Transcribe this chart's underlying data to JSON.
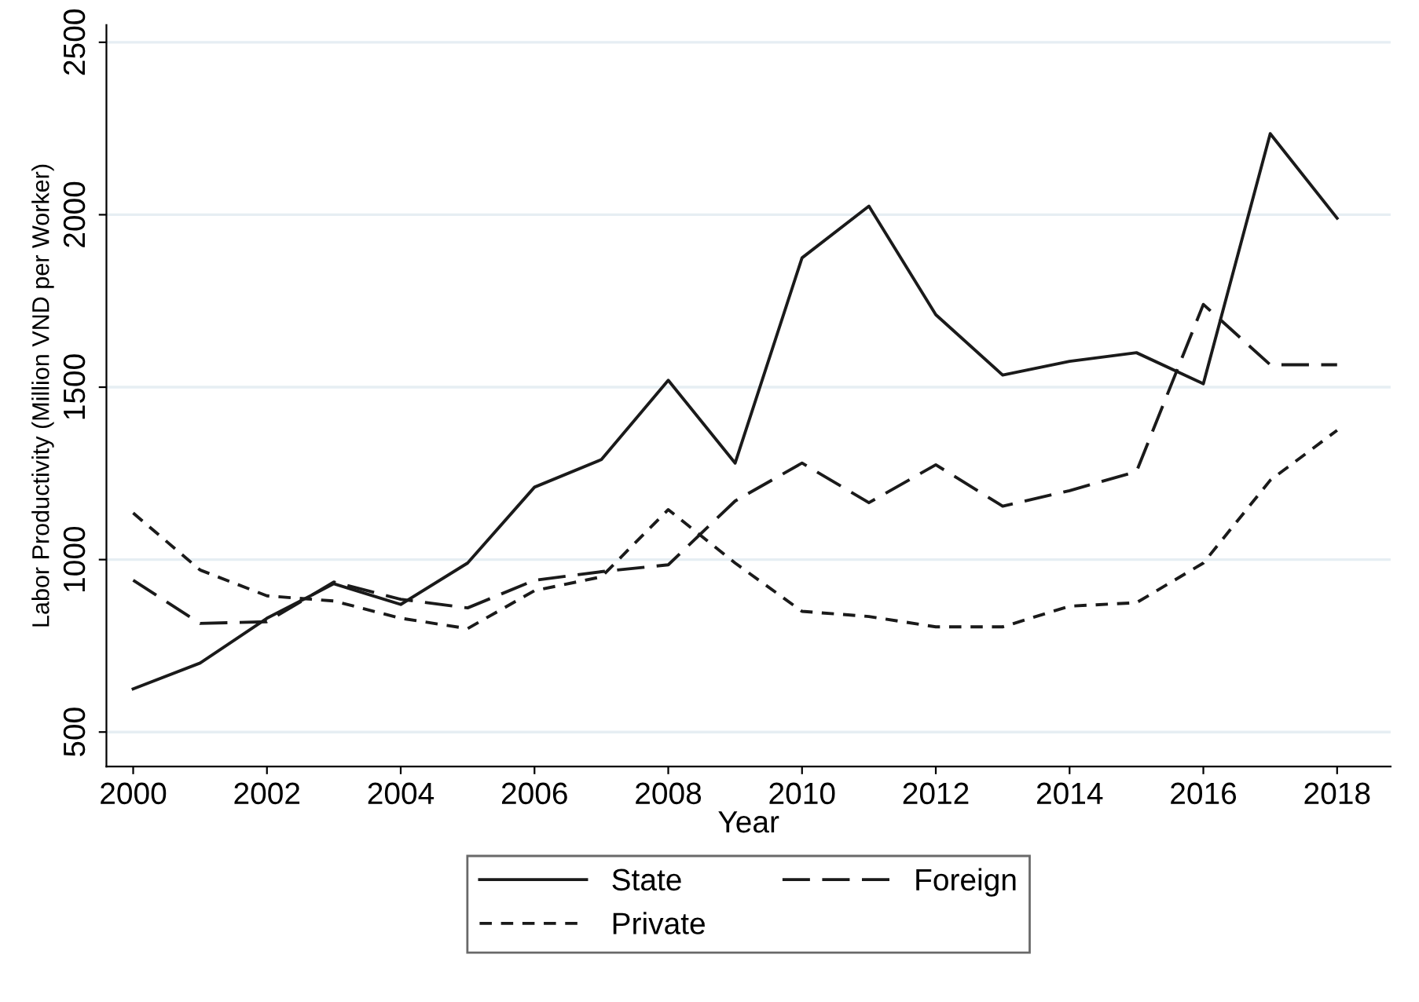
{
  "chart_data": {
    "type": "line",
    "xlabel": "Year",
    "ylabel": "Labor Productivity (Million VND per Worker)",
    "x": [
      2000,
      2001,
      2002,
      2003,
      2004,
      2005,
      2006,
      2007,
      2008,
      2009,
      2010,
      2011,
      2012,
      2013,
      2014,
      2015,
      2016,
      2017,
      2018
    ],
    "series": [
      {
        "name": "State",
        "color": "#1a1a1a",
        "line_style": "solid",
        "values": [
          625,
          700,
          830,
          930,
          870,
          990,
          1210,
          1290,
          1520,
          1280,
          1875,
          2025,
          1710,
          1535,
          1575,
          1600,
          1510,
          2235,
          1990
        ]
      },
      {
        "name": "Private",
        "color": "#1a1a1a",
        "line_style": "dashed",
        "values": [
          1135,
          970,
          895,
          880,
          830,
          800,
          910,
          950,
          1145,
          990,
          850,
          835,
          805,
          805,
          865,
          875,
          990,
          1230,
          1375
        ]
      },
      {
        "name": "Foreign",
        "color": "#1a1a1a",
        "line_style": "longdash",
        "values": [
          940,
          815,
          820,
          935,
          885,
          860,
          940,
          965,
          985,
          1170,
          1280,
          1165,
          1275,
          1155,
          1200,
          1255,
          1740,
          1565,
          1565
        ]
      }
    ],
    "xlim": [
      1999.6,
      2018.8
    ],
    "xticks": [
      2000,
      2002,
      2004,
      2006,
      2008,
      2010,
      2012,
      2014,
      2016,
      2018
    ],
    "ylim": [
      400,
      2550
    ],
    "yticks": [
      500,
      1000,
      1500,
      2000,
      2500
    ],
    "grid": "y",
    "legend": "bottom",
    "marker": "none"
  }
}
